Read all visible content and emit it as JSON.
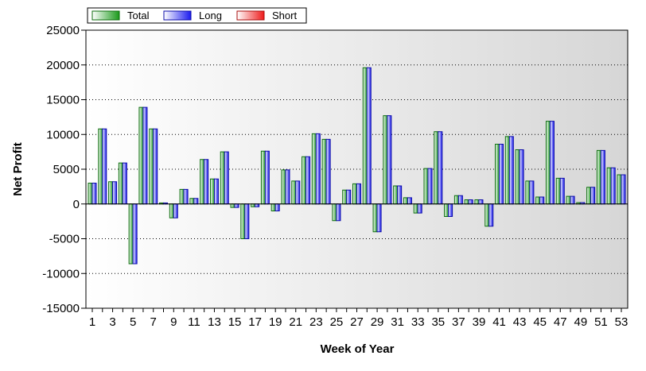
{
  "chart_data": {
    "type": "bar",
    "xlabel": "Week of Year",
    "ylabel": "Net Profit",
    "ylim": [
      -15000,
      25000
    ],
    "yticks": [
      "25000",
      "20000",
      "15000",
      "10000",
      "5000",
      "0",
      "-5000",
      "-10000",
      "-15000"
    ],
    "xtick_labels": [
      "1",
      "3",
      "5",
      "7",
      "9",
      "11",
      "13",
      "15",
      "17",
      "19",
      "21",
      "23",
      "25",
      "27",
      "29",
      "31",
      "33",
      "35",
      "37",
      "39",
      "41",
      "43",
      "45",
      "47",
      "49",
      "51",
      "53"
    ],
    "categories": [
      1,
      2,
      3,
      4,
      5,
      6,
      7,
      8,
      9,
      10,
      11,
      12,
      13,
      14,
      15,
      16,
      17,
      18,
      19,
      20,
      21,
      22,
      23,
      24,
      25,
      26,
      27,
      28,
      29,
      30,
      31,
      32,
      33,
      34,
      35,
      36,
      37,
      38,
      39,
      40,
      41,
      42,
      43,
      44,
      45,
      46,
      47,
      48,
      49,
      50,
      51,
      52,
      53
    ],
    "grid": true,
    "legend_position": "top-left",
    "series": [
      {
        "name": "Total",
        "color": "#1a9a1a",
        "values": [
          3000,
          10800,
          3200,
          5900,
          -8600,
          13900,
          10800,
          150,
          -2000,
          2100,
          800,
          6400,
          3600,
          7500,
          -500,
          -5000,
          -400,
          7600,
          -1000,
          4900,
          3300,
          6800,
          10100,
          9300,
          -2400,
          2000,
          2900,
          19600,
          -4000,
          12700,
          2600,
          900,
          -1300,
          5100,
          10400,
          -1800,
          1200,
          600,
          600,
          -3200,
          8600,
          9700,
          7800,
          3300,
          1000,
          11900,
          3700,
          1100,
          200,
          2400,
          7700,
          5200,
          4200
        ]
      },
      {
        "name": "Long",
        "color": "#1a1aee",
        "values": [
          3000,
          10800,
          3200,
          5900,
          -8600,
          13900,
          10800,
          150,
          -2000,
          2100,
          800,
          6400,
          3600,
          7500,
          -500,
          -5000,
          -400,
          7600,
          -1000,
          4900,
          3300,
          6800,
          10100,
          9300,
          -2400,
          2000,
          2900,
          19600,
          -4000,
          12700,
          2600,
          900,
          -1300,
          5100,
          10400,
          -1800,
          1200,
          600,
          600,
          -3200,
          8600,
          9700,
          7800,
          3300,
          1000,
          11900,
          3700,
          1100,
          200,
          2400,
          7700,
          5200,
          4200
        ]
      },
      {
        "name": "Short",
        "color": "#ee1a1a",
        "values": [
          0,
          0,
          0,
          0,
          0,
          0,
          0,
          0,
          0,
          0,
          0,
          0,
          0,
          0,
          0,
          0,
          0,
          0,
          0,
          0,
          0,
          0,
          0,
          0,
          0,
          0,
          0,
          0,
          0,
          0,
          0,
          0,
          0,
          0,
          0,
          0,
          0,
          0,
          0,
          0,
          0,
          0,
          0,
          0,
          0,
          0,
          0,
          0,
          0,
          0,
          0,
          0,
          0
        ]
      }
    ]
  }
}
